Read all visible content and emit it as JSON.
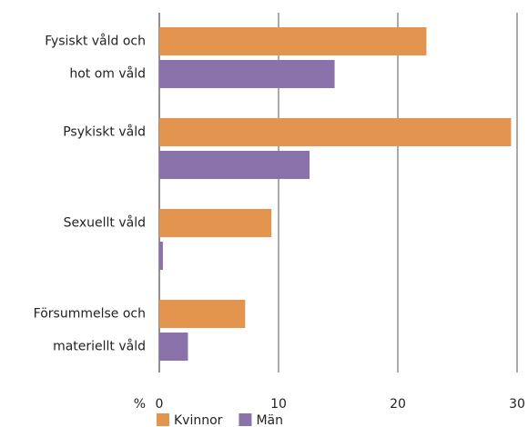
{
  "chart_data": {
    "type": "hbar",
    "categories": [
      [
        "Fysiskt våld och",
        "hot om våld"
      ],
      [
        "Psykiskt våld"
      ],
      [
        "Sexuellt våld"
      ],
      [
        "Försummelse och",
        "materiellt våld"
      ]
    ],
    "series": [
      {
        "name": "Kvinnor",
        "color": "#e3954f",
        "values": [
          22.4,
          29.5,
          9.4,
          7.2
        ]
      },
      {
        "name": "Män",
        "color": "#8a72aa",
        "values": [
          14.7,
          12.6,
          0.3,
          2.4
        ]
      }
    ],
    "xlabel": "%",
    "xlim": [
      0,
      30
    ],
    "xticks": [
      0,
      10,
      20,
      30
    ],
    "grid": true,
    "legend": "bottom"
  }
}
